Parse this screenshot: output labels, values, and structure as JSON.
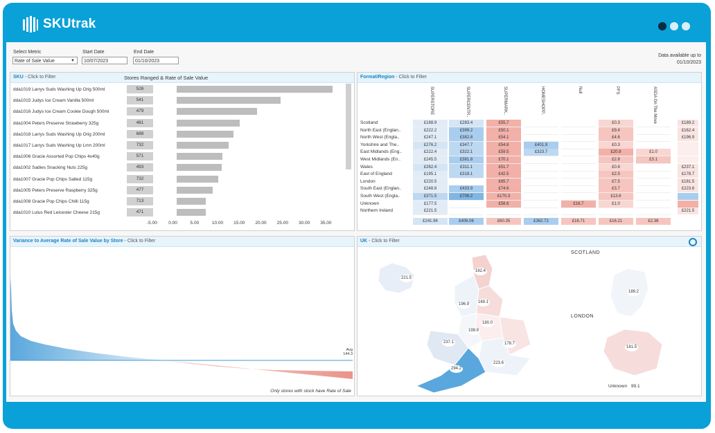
{
  "app": {
    "name": "SKUtrak"
  },
  "controls": {
    "metric_label": "Select Metric",
    "metric_value": "Rate of Sale Value",
    "start_label": "Start Date",
    "start_value": "10/07/2023",
    "end_label": "End Date",
    "end_value": "01/10/2023",
    "avail_line1": "Data available up to",
    "avail_line2": "01/10/2023"
  },
  "sku_panel": {
    "title": "SKU",
    "subtitle": "- Click to Filter",
    "chart_title": "Stores Ranged & Rate of Sale Value"
  },
  "format_panel": {
    "title": "Format/Region",
    "subtitle": "- Click to Filter"
  },
  "variance_panel": {
    "title": "Variance to Average Rate of Sale Value by Store",
    "subtitle": " - Click to Filter",
    "avg_label": "Avg",
    "avg_value": "144.3",
    "note": "Only stores with stock have Rate of Sale"
  },
  "uk_panel": {
    "title": "UK",
    "subtitle": " - Click to Filter",
    "scotland_label": "SCOTLAND",
    "london_label": "LONDON",
    "unknown_label": "Unknown",
    "unknown_value": "99.1",
    "regions": [
      {
        "name": "Northern Ireland",
        "value": "221.5"
      },
      {
        "name": "North East",
        "value": "162.4"
      },
      {
        "name": "North West",
        "value": "196.9"
      },
      {
        "name": "Yorkshire",
        "value": "169.1"
      },
      {
        "name": "East Midlands",
        "value": "180.0"
      },
      {
        "name": "West Midlands",
        "value": "199.9"
      },
      {
        "name": "Wales",
        "value": "237.1"
      },
      {
        "name": "East of England",
        "value": "178.7"
      },
      {
        "name": "South East",
        "value": "223.6"
      },
      {
        "name": "South West",
        "value": "294.2"
      },
      {
        "name": "Scotland",
        "value": "189.2"
      },
      {
        "name": "London",
        "value": "181.5"
      }
    ]
  },
  "chart_data": [
    {
      "type": "bar",
      "title": "Stores Ranged & Rate of Sale Value",
      "categories": [
        "dda1019 Larrys Suds Washing Up Orig 500ml",
        "dda1015 Judys Ice Cream Vanilla 500ml",
        "dda1016 Judys Ice Cream Cookie Dough 500ml",
        "dda1004 Peters Preserve Strawberry 325g",
        "dda1018 Larrys Suds Washing Up Orig 200ml",
        "dda1017 Larrys Suds Washing Up Lmn 200ml",
        "dda1006 Gracie Assorted Pop Chips 4x40g",
        "dda1002 Sadies Snacking Nuts 225g",
        "dda1007 Gracie Pop Chips Salted 115g",
        "dda1005 Peters Preserve Raspberry 325g",
        "dda1008 Gracie Pop Chips Chilli 115g",
        "dda1010 Lulus Red Leicester Cheese 215g"
      ],
      "stores": [
        "526",
        "541",
        "479",
        "481",
        "688",
        "732",
        "571",
        "493",
        "732",
        "477",
        "713",
        "471"
      ],
      "values": [
        36.0,
        24.0,
        18.5,
        14.5,
        13.0,
        12.0,
        10.5,
        10.3,
        9.5,
        8.3,
        6.6,
        6.6
      ],
      "xticks": [
        "-5.00",
        "0.00",
        "5.00",
        "10.00",
        "15.00",
        "20.00",
        "25.00",
        "30.00",
        "35.00"
      ],
      "xlim": [
        -5,
        38
      ]
    },
    {
      "type": "table",
      "title": "Format/Region",
      "columns": [
        "SUPERSTORE",
        "SUPERCENTR..",
        "SUPERMARK..",
        "HOMESHOPP..",
        "Null",
        "PFS",
        "ASDA On The Move"
      ],
      "rows": [
        {
          "label": "Scotland",
          "cells": [
            "£188.9",
            "£283.4",
            "£55.7",
            "",
            "",
            "£0.3",
            ""
          ],
          "total": "£189.2"
        },
        {
          "label": "North East (Englan..",
          "cells": [
            "£222.2",
            "£399.2",
            "£50.1",
            "",
            "",
            "£9.4",
            ""
          ],
          "total": "£162.4"
        },
        {
          "label": "North West (Engla..",
          "cells": [
            "£247.1",
            "£382.8",
            "£54.1",
            "",
            "",
            "£4.6",
            ""
          ],
          "total": "£196.9"
        },
        {
          "label": "Yorkshire and The..",
          "cells": [
            "£276.2",
            "£347.7",
            "£54.8",
            "£401.9",
            "",
            "£0.3",
            ""
          ],
          "total": ""
        },
        {
          "label": "East Midlands (Eng..",
          "cells": [
            "£222.4",
            "£322.1",
            "£59.5",
            "£323.7",
            "",
            "£20.8",
            "£1.0"
          ],
          "total": ""
        },
        {
          "label": "West Midlands (En..",
          "cells": [
            "£245.5",
            "£381.8",
            "£70.1",
            "",
            "",
            "£2.8",
            "£3.1"
          ],
          "total": ""
        },
        {
          "label": "Wales",
          "cells": [
            "£262.4",
            "£311.1",
            "£51.7",
            "",
            "",
            "£0.8",
            ""
          ],
          "total": "£237.1"
        },
        {
          "label": "East of England",
          "cells": [
            "£195.1",
            "£318.1",
            "£42.5",
            "",
            "",
            "£2.5",
            ""
          ],
          "total": "£178.7"
        },
        {
          "label": "London",
          "cells": [
            "£220.5",
            "",
            "£65.7",
            "",
            "",
            "£7.5",
            ""
          ],
          "total": "£181.5"
        },
        {
          "label": "South East (Englan..",
          "cells": [
            "£248.8",
            "£433.9",
            "£74.6",
            "",
            "",
            "£3.7",
            ""
          ],
          "total": "£223.6"
        },
        {
          "label": "South West (Engla..",
          "cells": [
            "£371.5",
            "£706.2",
            "£170.3",
            "",
            "",
            "£13.6",
            ""
          ],
          "total": ""
        },
        {
          "label": "Unknown",
          "cells": [
            "£177.5",
            "",
            "£58.6",
            "",
            "£16.7",
            "£1.0",
            ""
          ],
          "total": ""
        },
        {
          "label": "Northern Ireland",
          "cells": [
            "£221.5",
            "",
            "",
            "",
            "",
            "",
            ""
          ],
          "total": "£221.5"
        }
      ],
      "totals": [
        "£241.96",
        "£406.06",
        "£60.35",
        "£362.72",
        "£16.71",
        "£16.21",
        "£2.38"
      ]
    },
    {
      "type": "area",
      "title": "Variance to Average Rate of Sale Value by Store",
      "avg": 144.3
    }
  ]
}
